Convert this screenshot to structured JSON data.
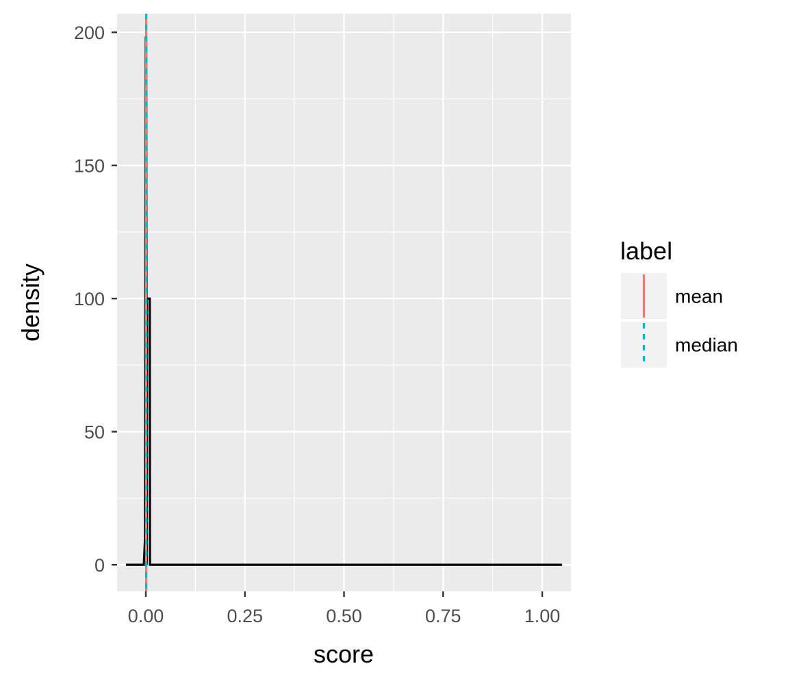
{
  "chart_data": {
    "type": "line",
    "xlabel": "score",
    "ylabel": "density",
    "xlim": [
      -0.0725,
      1.0725
    ],
    "ylim": [
      -10,
      207
    ],
    "x_ticks": [
      0.0,
      0.25,
      0.5,
      0.75,
      1.0
    ],
    "x_tick_labels": [
      "0.00",
      "0.25",
      "0.50",
      "0.75",
      "1.00"
    ],
    "y_ticks": [
      0,
      50,
      100,
      150,
      200
    ],
    "y_tick_labels": [
      "0",
      "50",
      "100",
      "150",
      "200"
    ],
    "grid": true,
    "series": [
      {
        "color": "#000000",
        "x": [
          -0.05,
          -0.01,
          -0.005,
          -0.002,
          0.0,
          0.001,
          0.002,
          0.0025,
          0.003,
          0.004,
          0.006,
          0.008,
          0.009,
          0.01,
          0.0105,
          0.02,
          0.5,
          1.0,
          1.05
        ],
        "y": [
          0,
          0,
          0,
          10,
          198,
          198,
          100,
          0,
          100,
          100,
          100,
          100,
          100,
          100,
          0,
          0,
          0,
          0,
          0
        ]
      }
    ],
    "vlines": [
      {
        "label": "mean",
        "x": 0.001,
        "color": "#F8766D",
        "linetype": "solid"
      },
      {
        "label": "median",
        "x": 0.001,
        "color": "#00BFC4",
        "linetype": "dashed"
      }
    ],
    "legend": {
      "title": "label",
      "placement": "right",
      "entries": [
        {
          "label": "mean",
          "color": "#F8766D",
          "linetype": "solid"
        },
        {
          "label": "median",
          "color": "#00BFC4",
          "linetype": "dashed"
        }
      ]
    }
  }
}
